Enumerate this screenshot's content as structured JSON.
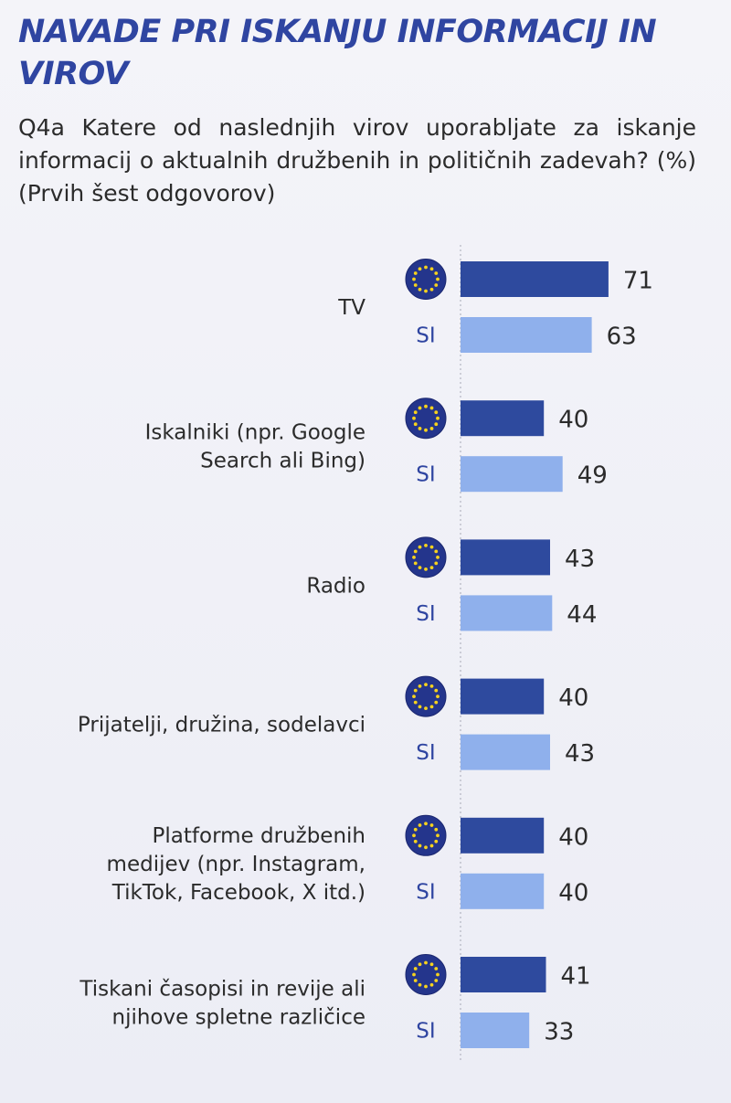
{
  "header": {
    "title": "NAVADE PRI ISKANJU INFORMACIJ IN VIROV",
    "question": "Q4a Katere od naslednjih virov uporabljate za iskanje informacij o aktualnih družbenih in političnih zadevah? (%) (Prvih šest odgovorov)"
  },
  "colors": {
    "eu": "#2e4a9e",
    "si": "#8fb0ec",
    "title": "#2f45a1"
  },
  "icons": {
    "eu": "eu-flag-icon"
  },
  "chart_data": {
    "type": "bar",
    "orientation": "horizontal",
    "categories": [
      [
        "TV"
      ],
      [
        "Iskalniki (npr. Google",
        "Search ali Bing)"
      ],
      [
        "Radio"
      ],
      [
        "Prijatelji, družina, sodelavci"
      ],
      [
        "Platforme družbenih",
        "medijev (npr. Instagram,",
        "TikTok, Facebook, X itd.)"
      ],
      [
        "Tiskani časopisi in revije ali",
        "njihove spletne različice"
      ]
    ],
    "series": [
      {
        "name": "EU",
        "label": "",
        "values": [
          71,
          40,
          43,
          40,
          40,
          41
        ]
      },
      {
        "name": "SI",
        "label": "SI",
        "values": [
          63,
          49,
          44,
          43,
          40,
          33
        ]
      }
    ],
    "xlim": [
      0,
      100
    ]
  }
}
